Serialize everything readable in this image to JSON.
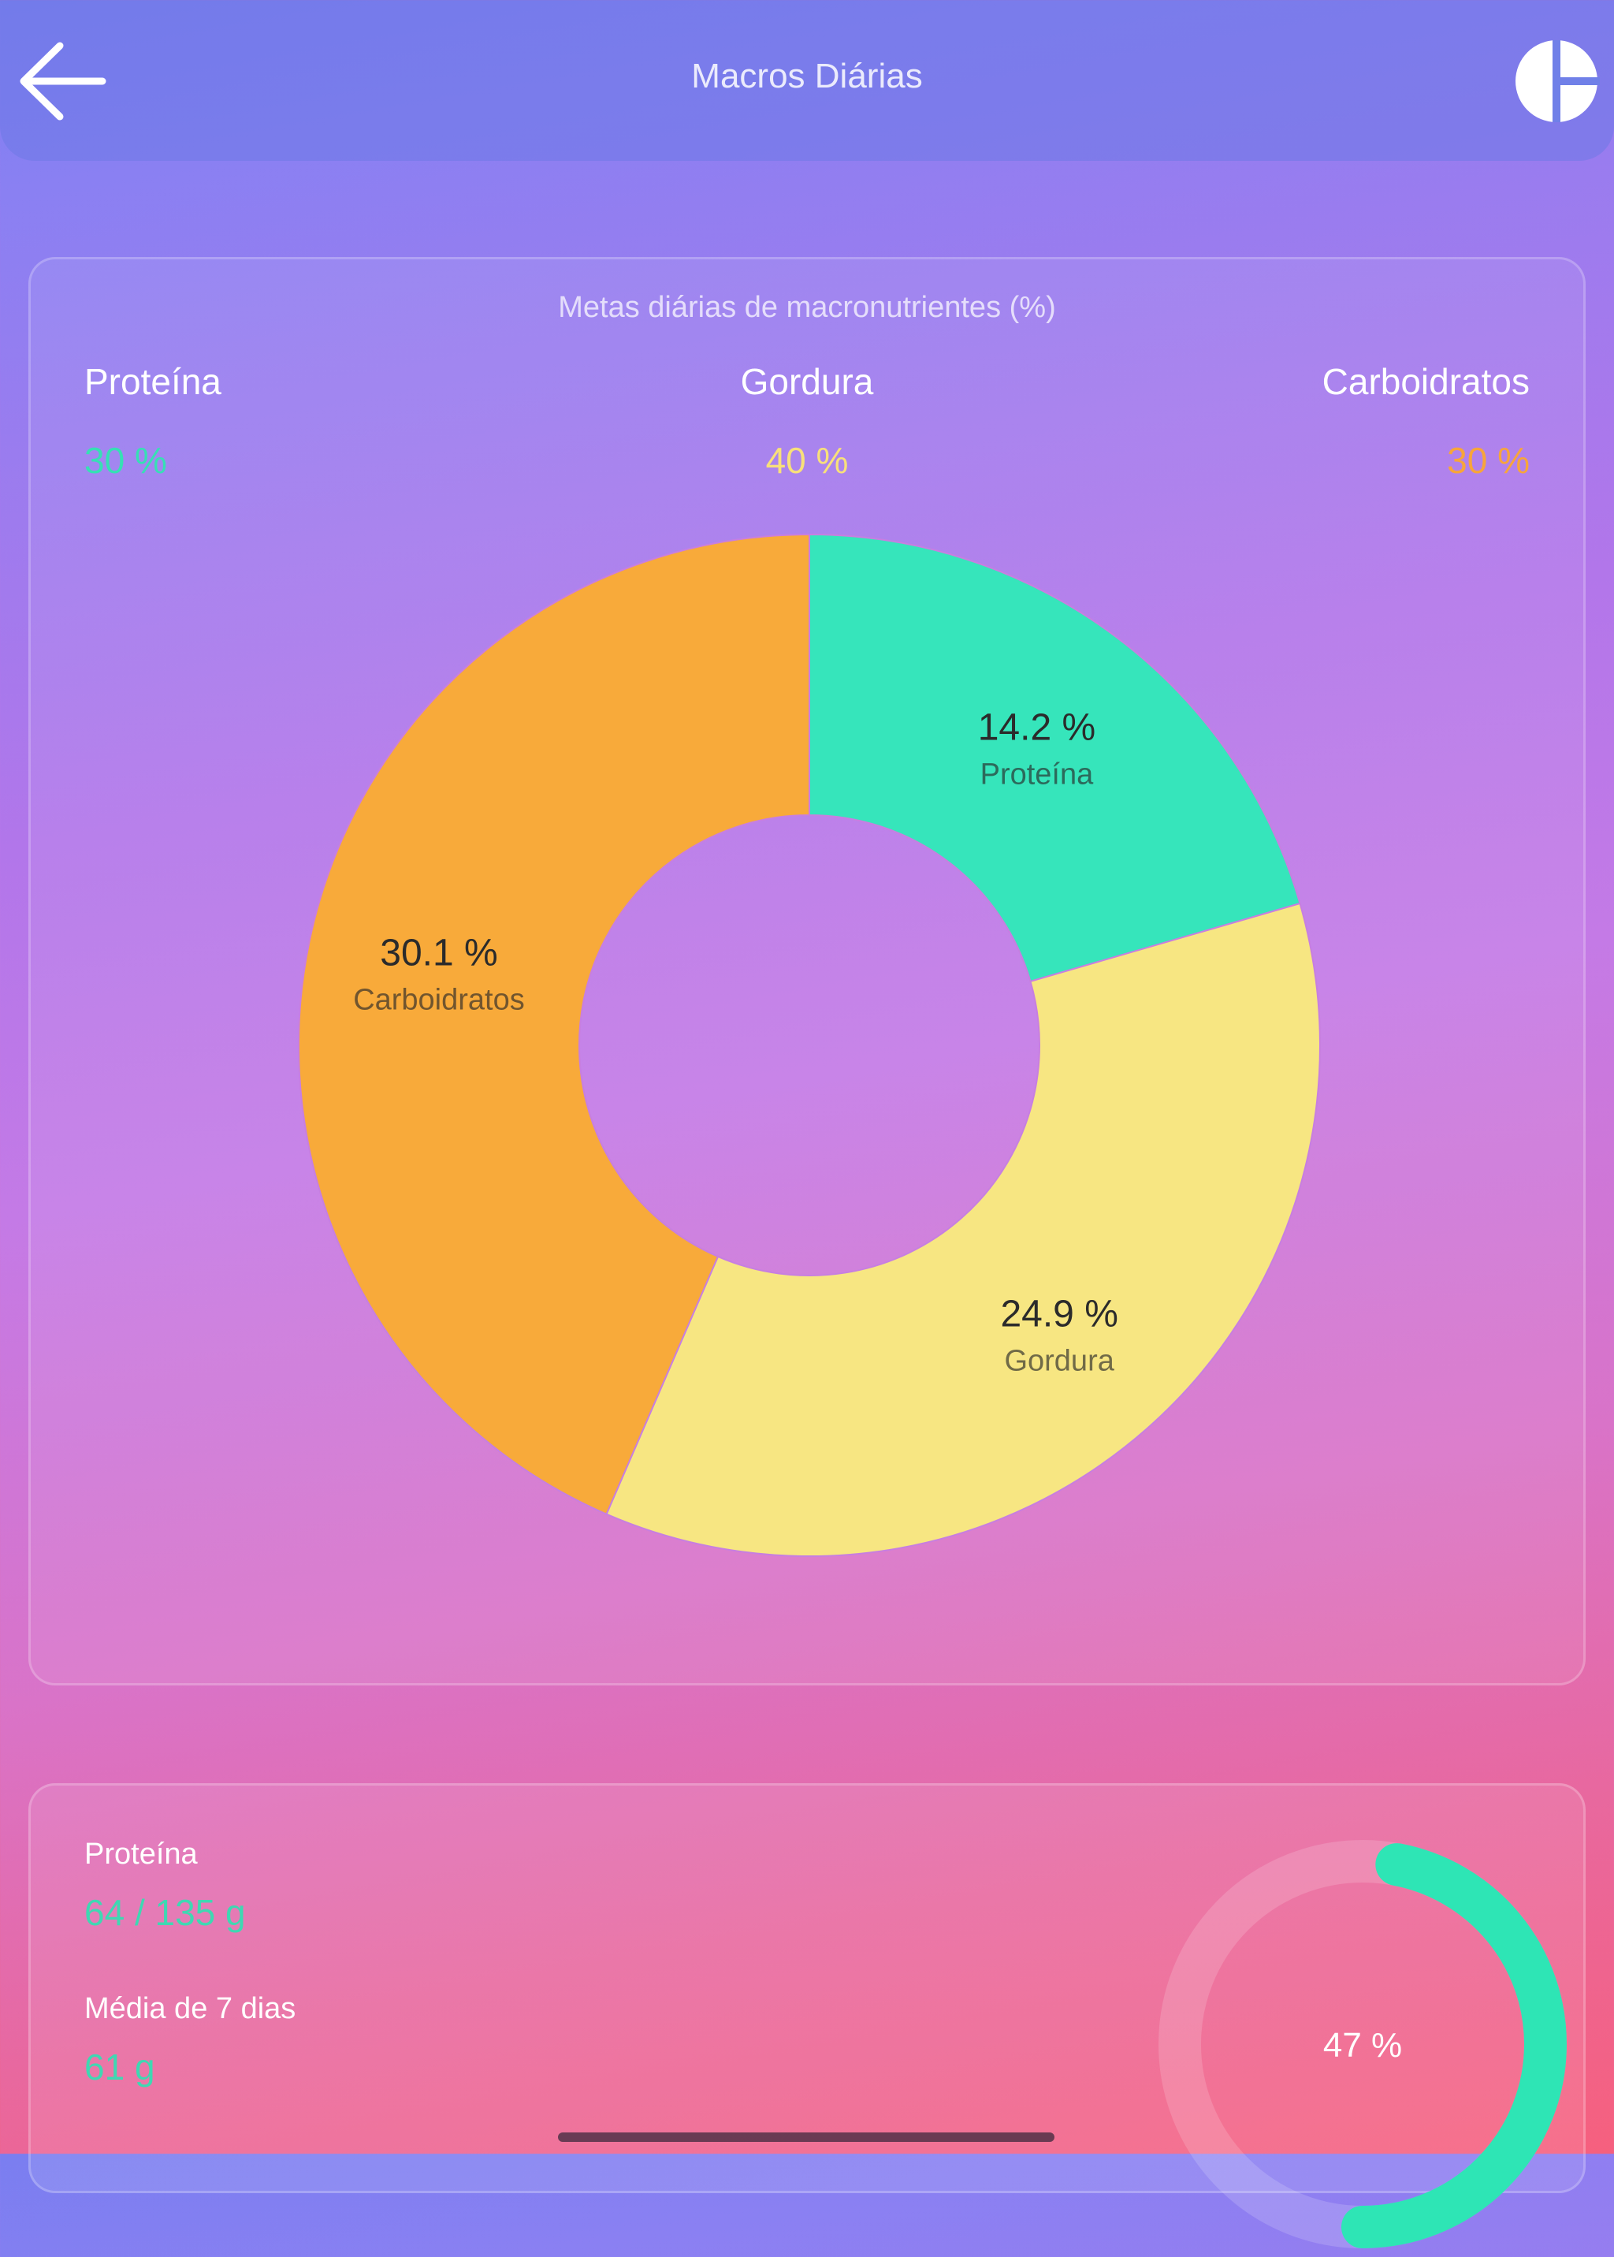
{
  "header": {
    "title": "Macros Diárias",
    "back_icon": "arrow-left-icon",
    "chart_icon": "pie-chart-icon"
  },
  "goals": {
    "subtitle": "Metas diárias de macronutrientes (%)",
    "protein": {
      "label": "Proteína",
      "value": "30 %",
      "color": "#36e0b4"
    },
    "fat": {
      "label": "Gordura",
      "value": "40 %",
      "color": "#f8e07a"
    },
    "carbs": {
      "label": "Carboidratos",
      "value": "30 %",
      "color": "#f7a53b"
    }
  },
  "chart_data": {
    "type": "pie",
    "variant": "donut",
    "title": "",
    "slices": [
      {
        "label": "Proteína",
        "value": 14.2,
        "value_label": "14.2 %",
        "color": "#36e5bb"
      },
      {
        "label": "Gordura",
        "value": 24.9,
        "value_label": "24.9 %",
        "color": "#f7e682"
      },
      {
        "label": "Carboidratos",
        "value": 30.1,
        "value_label": "30.1 %",
        "color": "#f8aa3a"
      }
    ]
  },
  "protein_stats": {
    "label": "Proteína",
    "value": "64 / 135 g",
    "avg_label": "Média de 7 dias",
    "avg_value": "61 g",
    "progress_label": "47 %",
    "progress": 0.47,
    "ring_color": "#2ee5b5"
  }
}
